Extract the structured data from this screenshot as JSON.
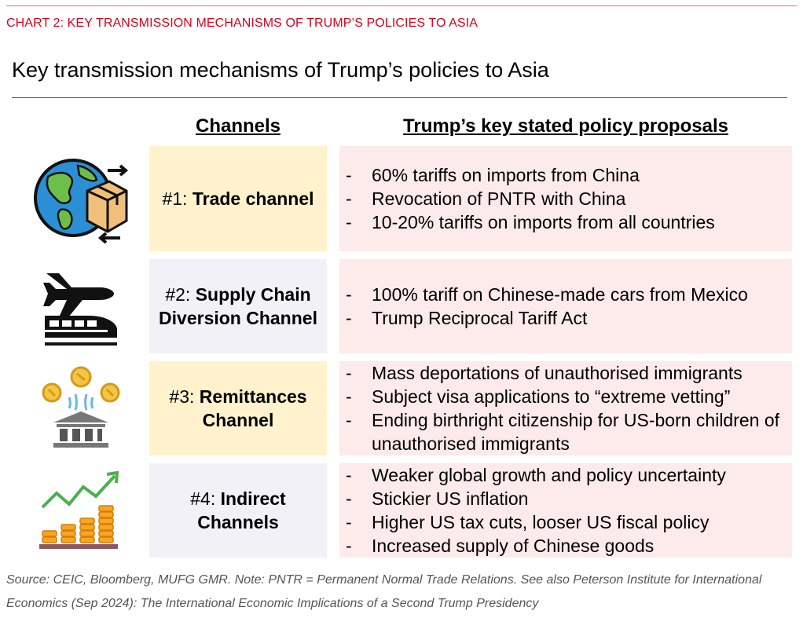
{
  "header": {
    "chart_label": "CHART 2: KEY TRANSMISSION MECHANISMS OF TRUMP’S POLICIES TO ASIA",
    "title": "Key transmission mechanisms of Trump’s policies to Asia"
  },
  "columns": {
    "channels": "Channels",
    "policies": "Trump’s key stated policy proposals"
  },
  "rows": [
    {
      "icon": "globe-trade-icon",
      "channel_num": "#1:",
      "channel_name": "Trade channel",
      "policies": [
        "60% tariffs on imports from China",
        "Revocation of PNTR with China",
        "10-20% tariffs on imports from all countries"
      ]
    },
    {
      "icon": "plane-train-icon",
      "channel_num": "#2:",
      "channel_name": "Supply Chain Diversion Channel",
      "policies": [
        "100% tariff on Chinese-made cars from Mexico",
        "Trump Reciprocal Tariff Act"
      ]
    },
    {
      "icon": "bank-coins-icon",
      "channel_num": "#3:",
      "channel_name": "Remittances Channel",
      "policies": [
        "Mass deportations of unauthorised immigrants",
        "Subject visa applications to “extreme vetting”",
        "Ending birthright citizenship for US-born children of unauthorised immigrants"
      ]
    },
    {
      "icon": "coins-growth-icon",
      "channel_num": "#4:",
      "channel_name": "Indirect Channels",
      "policies": [
        "Weaker global growth and policy uncertainty",
        "Stickier US inflation",
        "Higher US tax cuts, looser US fiscal policy",
        "Increased supply of Chinese goods"
      ]
    }
  ],
  "bullet": "-",
  "source": "Source: CEIC, Bloomberg, MUFG GMR. Note: PNTR = Permanent Normal Trade Relations. See also Peterson Institute for International Economics (Sep 2024): The International Economic Implications of a Second Trump Presidency",
  "colors": {
    "accent_red": "#d9001b",
    "channel_yellow": "#fff2cc",
    "channel_lavender": "#f1f1f7",
    "policy_pink": "#fdeaea"
  }
}
